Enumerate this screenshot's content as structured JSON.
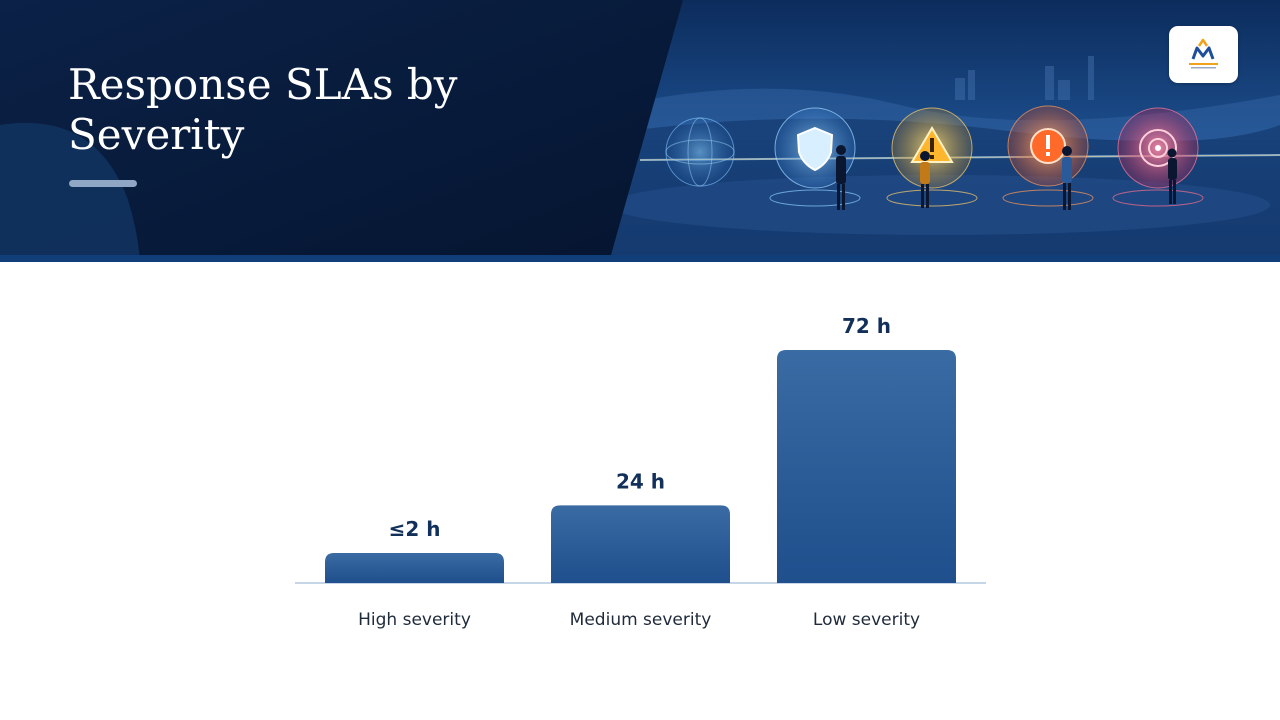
{
  "slide": {
    "title": "Response SLAs by Severity"
  },
  "header_illustration": {
    "icons": [
      "globe-network-icon",
      "shield-icon",
      "warning-triangle-icon",
      "exclamation-icon",
      "target-icon"
    ],
    "colors": {
      "navy": "#061a36",
      "accent_blue": "#2f6db5"
    }
  },
  "logo": {
    "icon": "company-logo"
  },
  "chart_data": {
    "type": "bar",
    "categories": [
      "High severity",
      "Medium severity",
      "Low severity"
    ],
    "values": [
      2,
      24,
      72
    ],
    "value_labels": [
      "≤2 h",
      "24 h",
      "72 h"
    ],
    "unit": "h",
    "ylim": [
      0,
      72
    ],
    "bar_color": "#2c5a92",
    "grid": false,
    "legend": "none"
  }
}
